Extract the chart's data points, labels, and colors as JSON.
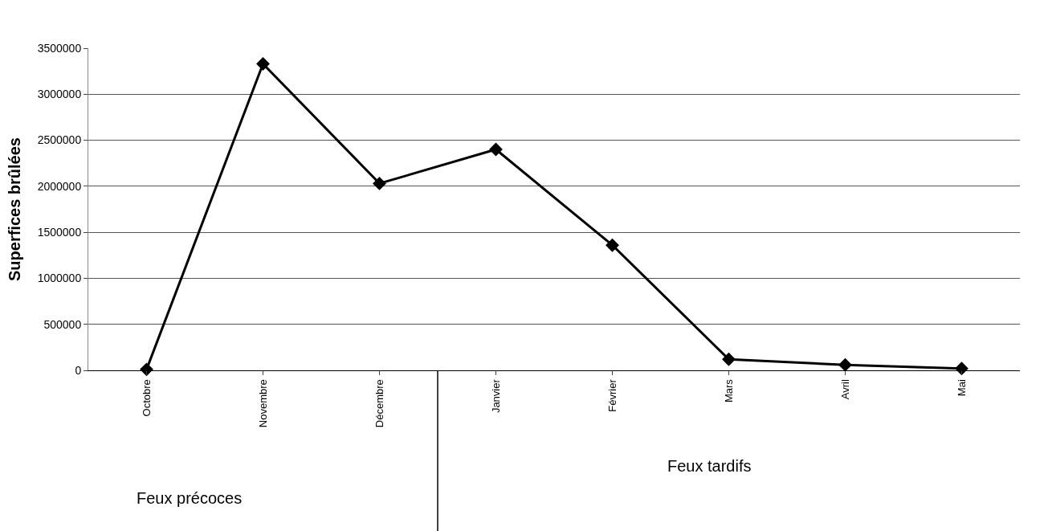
{
  "chart_data": {
    "type": "line",
    "ylabel": "Superfices brûlées",
    "categories": [
      "Octobre",
      "Novembre",
      "Décembre",
      "Janvier",
      "Février",
      "Mars",
      "Avril",
      "Mai"
    ],
    "series": [
      {
        "color": "#000000",
        "values": [
          10000,
          3330000,
          2030000,
          2400000,
          1360000,
          120000,
          60000,
          20000
        ]
      }
    ],
    "ylim": [
      0,
      3500000
    ],
    "yticks": [
      0,
      500000,
      1000000,
      1500000,
      2000000,
      2500000,
      3000000,
      3500000
    ],
    "grid": "y",
    "marker": "diamond",
    "line_style": "solid",
    "legend": false,
    "annotations": [
      "Feux précoces",
      "Feux tardifs"
    ]
  }
}
